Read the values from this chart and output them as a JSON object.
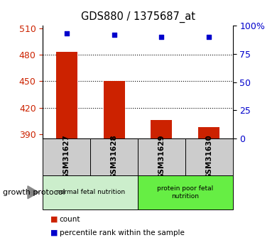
{
  "title": "GDS880 / 1375687_at",
  "samples": [
    "GSM31627",
    "GSM31628",
    "GSM31629",
    "GSM31630"
  ],
  "counts": [
    483,
    450,
    406,
    398
  ],
  "percentiles": [
    93,
    92,
    90,
    90
  ],
  "ylim_left": [
    385,
    513
  ],
  "yticks_left": [
    390,
    420,
    450,
    480,
    510
  ],
  "ylim_right": [
    0,
    100
  ],
  "yticks_right": [
    0,
    25,
    50,
    75,
    100
  ],
  "bar_color": "#CC2200",
  "marker_color": "#0000CC",
  "groups": [
    {
      "label": "normal fetal nutrition",
      "indices": [
        0,
        1
      ],
      "color": "#CCEECC"
    },
    {
      "label": "protein poor fetal\nnutrition",
      "indices": [
        2,
        3
      ],
      "color": "#66EE44"
    }
  ],
  "group_label": "growth protocol",
  "legend_items": [
    {
      "label": "count",
      "color": "#CC2200"
    },
    {
      "label": "percentile rank within the sample",
      "color": "#0000CC"
    }
  ],
  "tick_color_left": "#CC2200",
  "tick_color_right": "#0000CC"
}
